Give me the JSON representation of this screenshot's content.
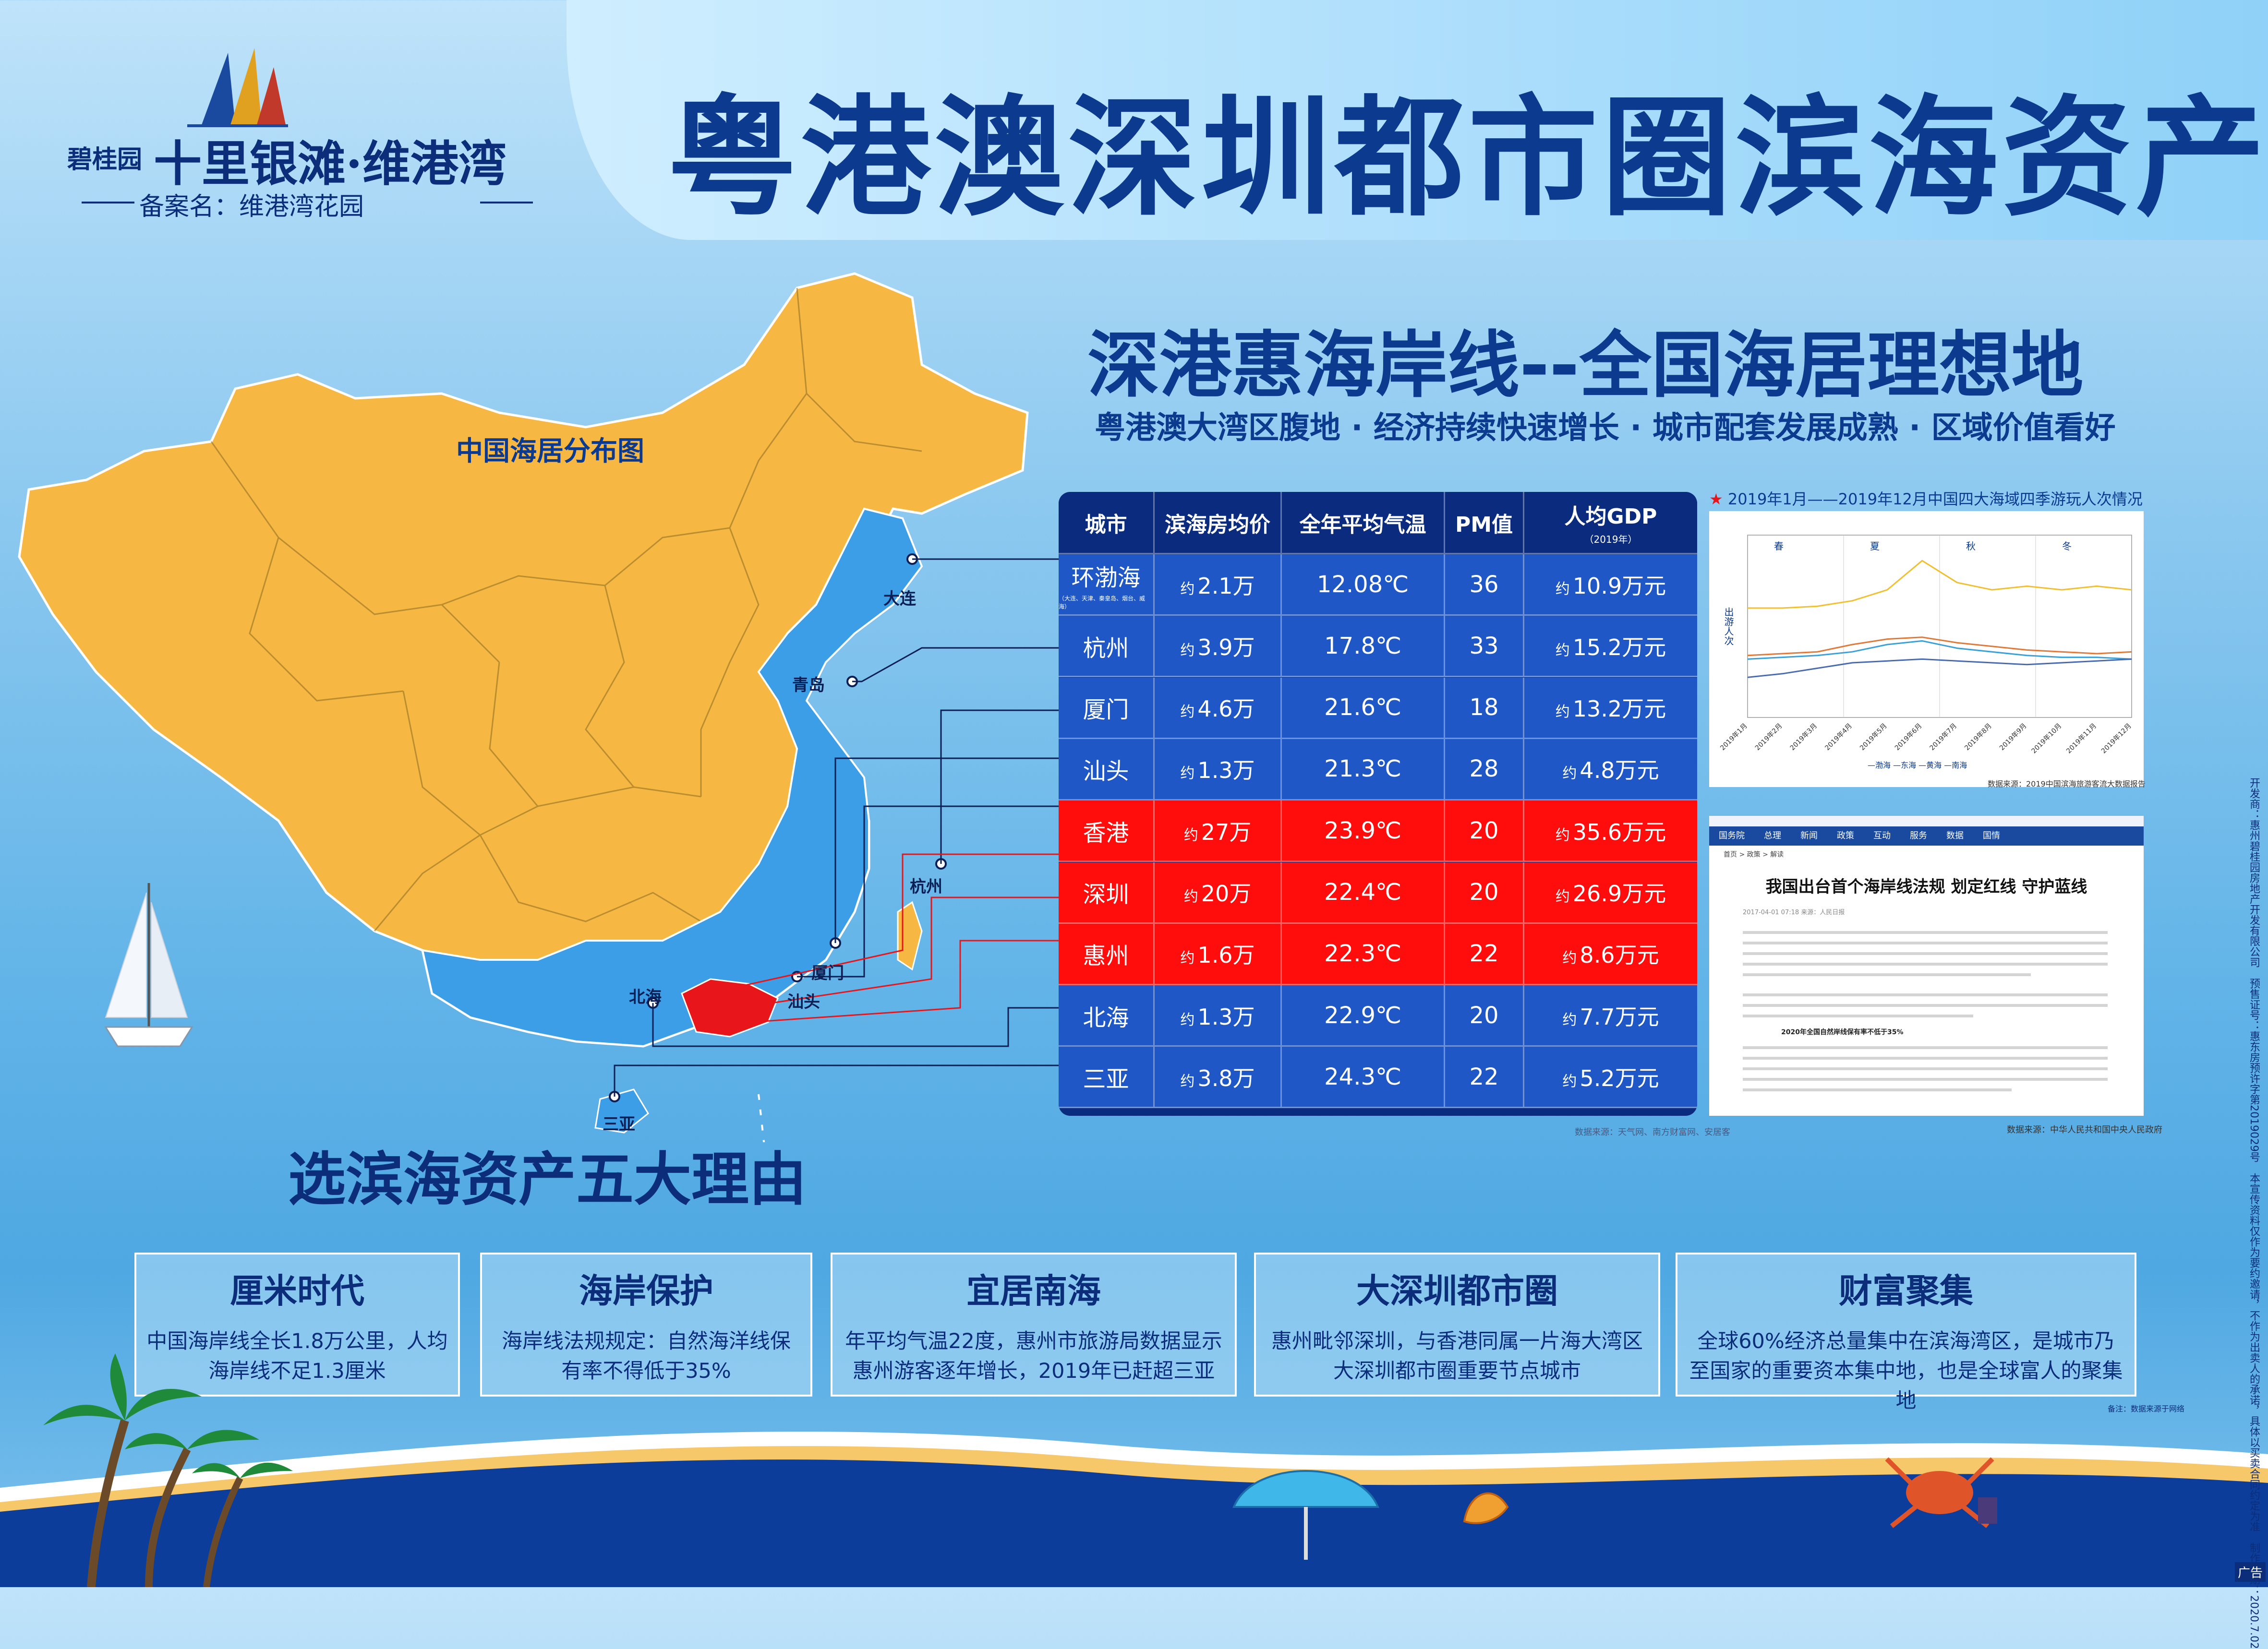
{
  "brand": {
    "prefix": "碧桂园",
    "name": "十里银滩·维港湾",
    "registration": "备案名：维港湾花园"
  },
  "main_title": "粤港澳深圳都市圈滨海资产",
  "section": {
    "heading": "深港惠海岸线--全国海居理想地",
    "tagline": "粤港澳大湾区腹地 · 经济持续快速增长 · 城市配套发展成熟 · 区域价值看好"
  },
  "map": {
    "caption": "中国海居分布图",
    "cities": [
      "大连",
      "青岛",
      "杭州",
      "厦门",
      "汕头",
      "北海",
      "三亚"
    ]
  },
  "table": {
    "headers": [
      "城市",
      "滨海房均价",
      "全年平均气温",
      "PM值",
      "人均GDP"
    ],
    "gdp_year_note": "（2019年）",
    "yue": "约",
    "rows": [
      {
        "city": "环渤海",
        "city_note": "（大连、天津、秦皇岛、烟台、威海）",
        "price": "2.1万",
        "temp": "12.08℃",
        "pm": "36",
        "gdp": "10.9万元",
        "highlight": false
      },
      {
        "city": "杭州",
        "city_note": "",
        "price": "3.9万",
        "temp": "17.8℃",
        "pm": "33",
        "gdp": "15.2万元",
        "highlight": false
      },
      {
        "city": "厦门",
        "city_note": "",
        "price": "4.6万",
        "temp": "21.6℃",
        "pm": "18",
        "gdp": "13.2万元",
        "highlight": false
      },
      {
        "city": "汕头",
        "city_note": "",
        "price": "1.3万",
        "temp": "21.3℃",
        "pm": "28",
        "gdp": "4.8万元",
        "highlight": false
      },
      {
        "city": "香港",
        "city_note": "",
        "price": "27万",
        "temp": "23.9℃",
        "pm": "20",
        "gdp": "35.6万元",
        "highlight": true
      },
      {
        "city": "深圳",
        "city_note": "",
        "price": "20万",
        "temp": "22.4℃",
        "pm": "20",
        "gdp": "26.9万元",
        "highlight": true
      },
      {
        "city": "惠州",
        "city_note": "",
        "price": "1.6万",
        "temp": "22.3℃",
        "pm": "22",
        "gdp": "8.6万元",
        "highlight": true
      },
      {
        "city": "北海",
        "city_note": "",
        "price": "1.3万",
        "temp": "22.9℃",
        "pm": "20",
        "gdp": "7.7万元",
        "highlight": false
      },
      {
        "city": "三亚",
        "city_note": "",
        "price": "3.8万",
        "temp": "24.3℃",
        "pm": "22",
        "gdp": "5.2万元",
        "highlight": false
      }
    ],
    "source": "数据来源：天气网、南方财富网、安居客"
  },
  "chart_data": {
    "type": "line",
    "title": "2019年1月——2019年12月中国四大海域四季游玩人次情况",
    "ylabel": "出游人次",
    "season_labels": [
      "春",
      "夏",
      "秋",
      "冬"
    ],
    "categories": [
      "2019年1月",
      "2019年2月",
      "2019年3月",
      "2019年4月",
      "2019年5月",
      "2019年6月",
      "2019年7月",
      "2019年8月",
      "2019年9月",
      "2019年10月",
      "2019年11月",
      "2019年12月"
    ],
    "series": [
      {
        "name": "渤海",
        "values": [
          32,
          33,
          34,
          36,
          40,
          42,
          38,
          36,
          34,
          33,
          33,
          32
        ]
      },
      {
        "name": "东海",
        "values": [
          34,
          35,
          36,
          40,
          43,
          44,
          41,
          39,
          37,
          36,
          35,
          36
        ]
      },
      {
        "name": "黄海",
        "values": [
          60,
          60,
          61,
          64,
          70,
          86,
          74,
          70,
          72,
          70,
          72,
          70
        ]
      },
      {
        "name": "南海",
        "values": [
          22,
          24,
          27,
          30,
          31,
          32,
          31,
          30,
          29,
          30,
          31,
          32
        ]
      }
    ],
    "series_colors": [
      "#3aa0d8",
      "#e07a3a",
      "#f0c030",
      "#4a6bb0"
    ],
    "legend_text": "—渤海 —东海 —黄海 —南海",
    "source": "数据来源：2019中国滨海旅游客流大数据报告"
  },
  "news": {
    "nav": [
      "国务院",
      "总理",
      "新闻",
      "政策",
      "互动",
      "服务",
      "数据",
      "国情"
    ],
    "breadcrumb": "首页 > 政策 > 解读",
    "title": "我国出台首个海岸线法规 划定红线 守护蓝线",
    "meta": "2017-04-01 07:18 来源：人民日报",
    "subhead": "2020年全国自然岸线保有率不低于35%",
    "source": "数据来源：中华人民共和国中央人民政府"
  },
  "reasons": {
    "heading": "选滨海资产五大理由",
    "items": [
      {
        "title": "厘米时代",
        "body": "中国海岸线全长1.8万公里，人均海岸线不足1.3厘米"
      },
      {
        "title": "海岸保护",
        "body": "海岸线法规规定：自然海洋线保有率不得低于35%"
      },
      {
        "title": "宜居南海",
        "body": "年平均气温22度，惠州市旅游局数据显示惠州游客逐年增长，2019年已赶超三亚"
      },
      {
        "title": "大深圳都市圈",
        "body": "惠州毗邻深圳，与香港同属一片海大湾区大深圳都市圈重要节点城市"
      },
      {
        "title": "财富聚集",
        "body": "全球60%经济总量集中在滨海湾区，是城市乃至国家的重要资本集中地，也是全球富人的聚集地"
      }
    ],
    "note": "备注：数据来源于网络"
  },
  "disclaimer": "开发商：惠州碧桂园房地产开发有限公司　预售证号：惠东房预许字第2019029号　本宣传资料仅作为要约邀请，不作为出卖人的承诺，具体以买卖合同约定为准　制作日期：2020.7.02",
  "ad_tag": "广告",
  "colors": {
    "navy": "#0b2c7e",
    "blue_row": "#1f58c6",
    "red_row": "#ff0d0d",
    "land": "#f7b843",
    "coast": "#3d9ee8"
  }
}
